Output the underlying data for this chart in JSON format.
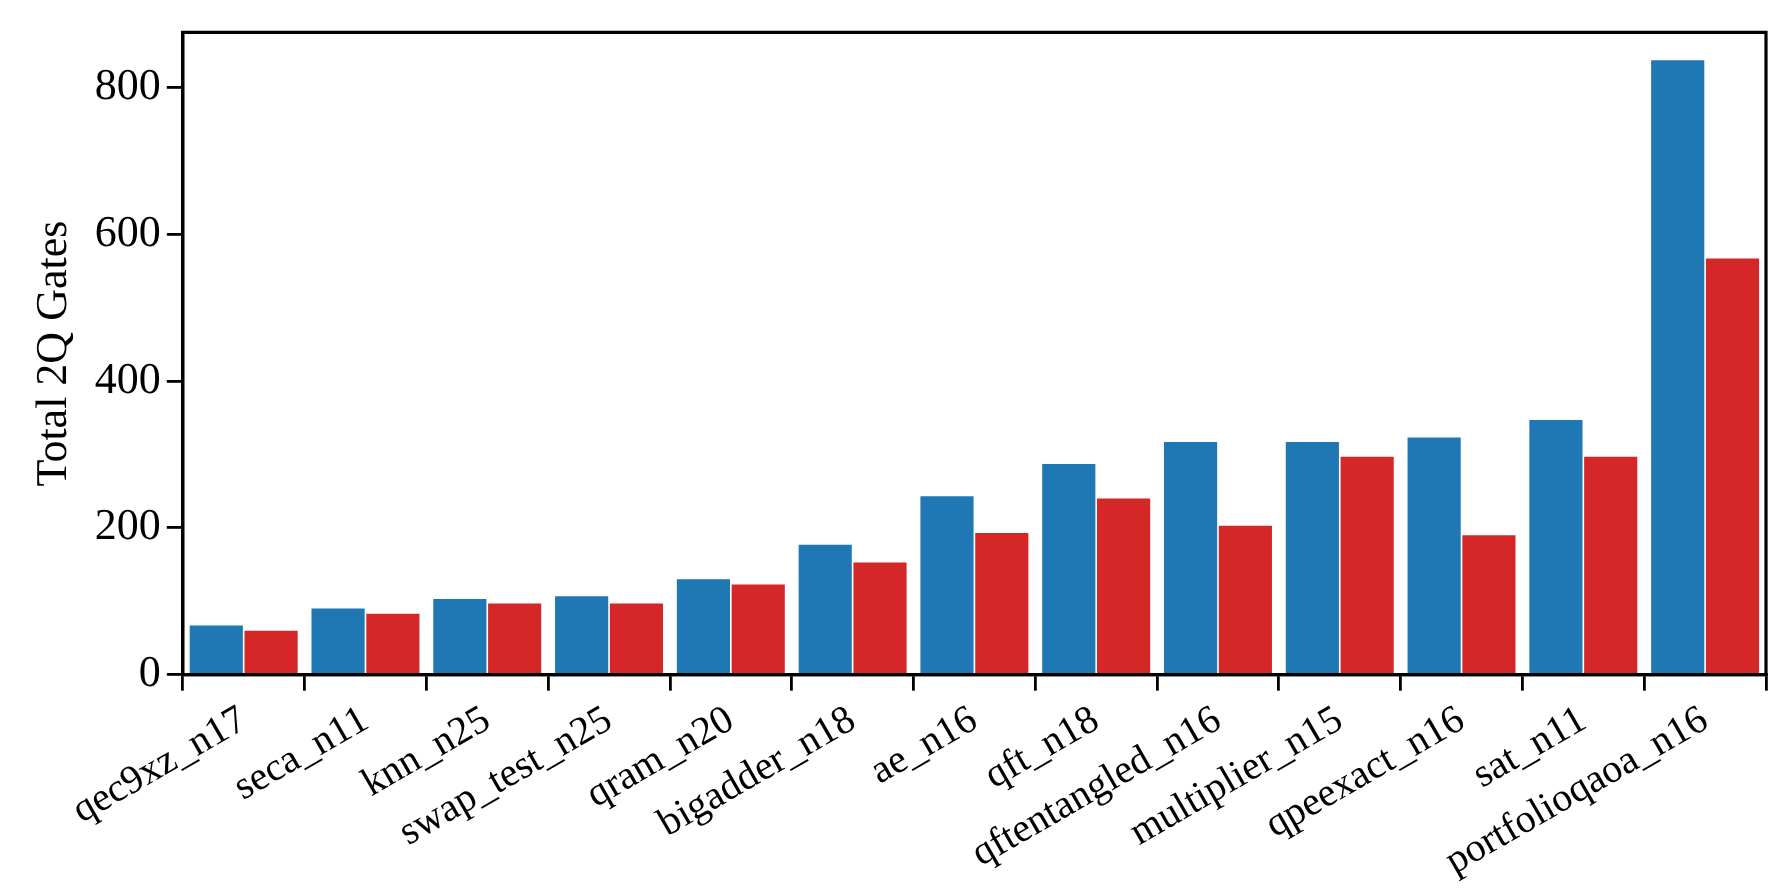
{
  "chart_data": {
    "type": "bar",
    "ylabel": "Total 2Q Gates",
    "categories": [
      "qec9xz_n17",
      "seca_n11",
      "knn_n25",
      "swap_test_n25",
      "qram_n20",
      "bigadder_n18",
      "ae_n16",
      "qft_n18",
      "qftentangled_n16",
      "multiplier_n15",
      "qpeexact_n16",
      "sat_n11",
      "portfolioqaoa_n16"
    ],
    "series": [
      {
        "color": "#1f77b4",
        "values": [
          67,
          90,
          103,
          107,
          130,
          177,
          243,
          287,
          317,
          317,
          323,
          347,
          837
        ]
      },
      {
        "color": "#d62728",
        "values": [
          60,
          83,
          97,
          97,
          123,
          153,
          193,
          240,
          203,
          297,
          190,
          297,
          567
        ]
      }
    ],
    "ylim": [
      0,
      875
    ],
    "yticks": [
      0,
      200,
      400,
      600,
      800
    ],
    "grid": false,
    "legend": false
  }
}
